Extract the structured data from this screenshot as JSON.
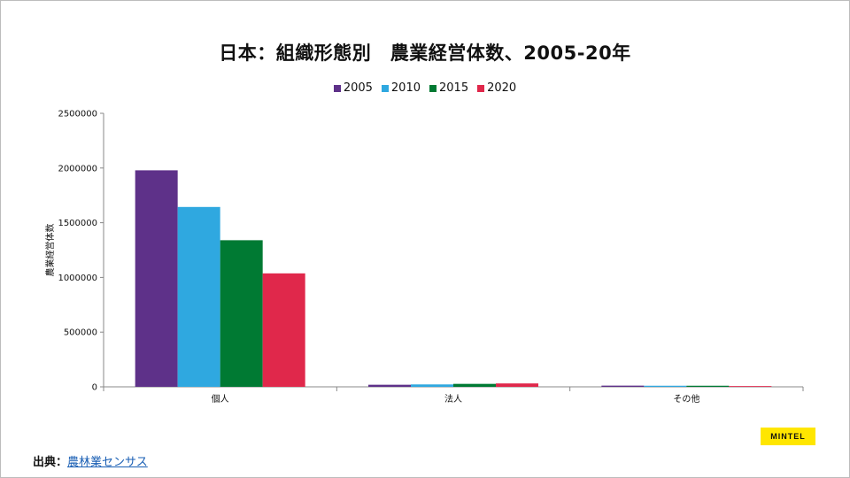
{
  "title": "日本：組織形態別　農業経営体数、2005-20年",
  "source": {
    "label": "出典：",
    "link_text": "農林業センサス"
  },
  "logo_text": "MINTEL",
  "chart_data": {
    "type": "bar",
    "title": "日本：組織形態別　農業経営体数、2005-20年",
    "xlabel": "",
    "ylabel": "農業経営体数",
    "ylim": [
      0,
      2500000
    ],
    "yticks": [
      "0",
      "500000",
      "1000000",
      "1500000",
      "2000000",
      "2500000"
    ],
    "categories": [
      "個人",
      "法人",
      "その他"
    ],
    "series": [
      {
        "name": "2005",
        "color": "#5e3189",
        "values": [
          1979000,
          19000,
          11000
        ]
      },
      {
        "name": "2010",
        "color": "#2fa8e0",
        "values": [
          1644000,
          22000,
          10000
        ]
      },
      {
        "name": "2015",
        "color": "#007a33",
        "values": [
          1340000,
          27000,
          10000
        ]
      },
      {
        "name": "2020",
        "color": "#e0284b",
        "values": [
          1037000,
          31000,
          7000
        ]
      }
    ],
    "legend_position": "top-center",
    "grid": false
  }
}
